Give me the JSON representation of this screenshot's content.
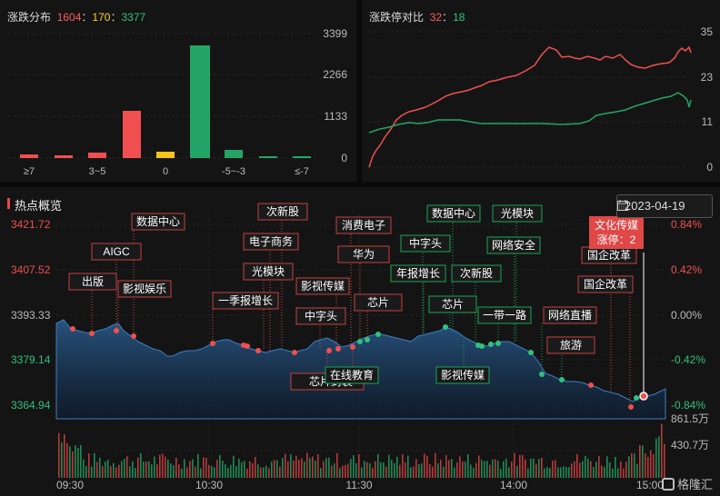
{
  "distribution": {
    "title": "涨跌分布",
    "up": "1604",
    "flat": "170",
    "down": "3377",
    "sep": "：",
    "y_ticks": [
      "3399",
      "2266",
      "1133",
      "0"
    ],
    "x_labels": [
      "≥7",
      "3~5",
      "0",
      "-5~-3",
      "≤-7"
    ],
    "colors": {
      "up": "#f0504f",
      "flat": "#f5c518",
      "down": "#24a567"
    }
  },
  "limit": {
    "title": "涨跌停对比",
    "up": "32",
    "sep": "：",
    "down": "18",
    "y_ticks": [
      "35",
      "23",
      "11",
      "0"
    ]
  },
  "hot": {
    "title": "热点概览",
    "date": "2023-04-19",
    "left_ticks": [
      "3421.72",
      "3407.52",
      "3393.33",
      "3379.14",
      "3364.94"
    ],
    "right_ticks": [
      "0.84%",
      "0.42%",
      "0.00%",
      "-0.42%",
      "-0.84%"
    ],
    "vol_ticks": [
      "861.5万",
      "430.7万"
    ],
    "time_labels": [
      "09:30",
      "10:30",
      "11:30",
      "14:00",
      "15:00"
    ],
    "tags": {
      "t1": "数据中心",
      "t2": "AIGC",
      "t3": "出版",
      "t4": "影视娱乐",
      "t5": "次新股",
      "t6": "电子商务",
      "t7": "光模块",
      "t8": "一季报增长",
      "t9": "影视传媒",
      "t10": "中字头",
      "t11": "消费电子",
      "t12": "华为",
      "t13": "芯片",
      "t14": "芯片封装",
      "t15": "在线教育",
      "t16": "数据中心",
      "t17": "光模块",
      "t18": "中字头",
      "t19": "网络安全",
      "t20": "年报增长",
      "t21": "次新股",
      "t22": "芯片",
      "t23": "一带一路",
      "t24": "网络直播",
      "t25": "影视传媒",
      "t26": "旅游",
      "t27": "国企改革",
      "t28": "国企改革"
    },
    "current_tag": {
      "name": "文化传媒",
      "line2": "涨停：2"
    },
    "logo": "格隆汇"
  }
}
